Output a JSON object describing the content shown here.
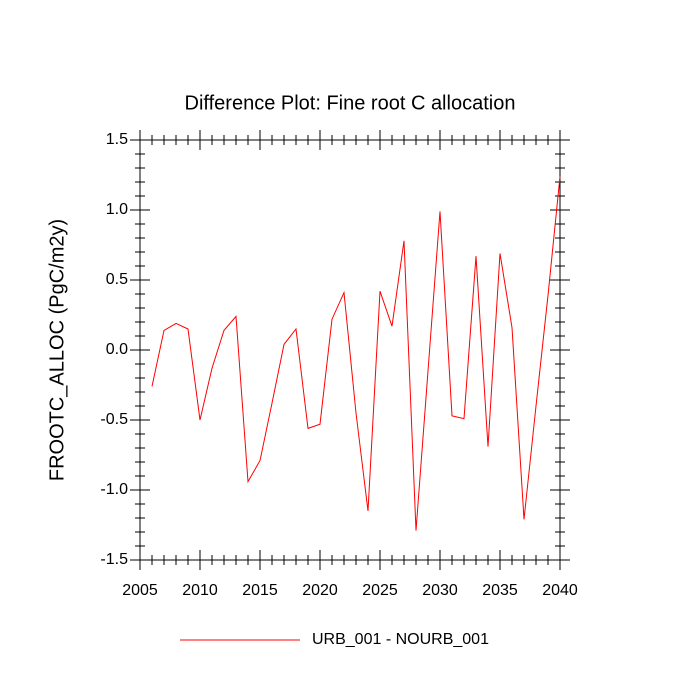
{
  "chart_data": {
    "type": "line",
    "title": "Difference Plot: Fine root C allocation",
    "y_label": "FROOTC_ALLOC  (PgC/m2y)",
    "x": [
      2006,
      2007,
      2008,
      2009,
      2010,
      2011,
      2012,
      2013,
      2014,
      2015,
      2016,
      2017,
      2018,
      2019,
      2020,
      2021,
      2022,
      2023,
      2024,
      2025,
      2026,
      2027,
      2028,
      2029,
      2030,
      2031,
      2032,
      2033,
      2034,
      2035,
      2036,
      2037,
      2038,
      2039,
      2040
    ],
    "series": [
      {
        "name": "URB_001 - NOURB_001",
        "color": "#ff0000",
        "values": [
          -0.26,
          0.14,
          0.19,
          0.15,
          -0.5,
          -0.13,
          0.14,
          0.24,
          -0.94,
          -0.79,
          -0.38,
          0.04,
          0.15,
          -0.56,
          -0.53,
          0.22,
          0.41,
          -0.45,
          -1.15,
          0.42,
          0.17,
          0.78,
          -1.29,
          -0.15,
          0.99,
          -0.47,
          -0.49,
          0.67,
          -0.69,
          0.69,
          0.16,
          -1.21,
          -0.4,
          0.39,
          1.24
        ]
      }
    ],
    "xlim": [
      2005,
      2040
    ],
    "xticks": [
      2005,
      2010,
      2015,
      2020,
      2025,
      2030,
      2035,
      2040
    ],
    "ylim": [
      -1.5,
      1.5
    ],
    "yticks": [
      -1.5,
      {
        "value": -1,
        "label": "-1.0"
      },
      -0.5,
      {
        "value": 0,
        "label": "0.0"
      },
      0.5,
      {
        "value": 1,
        "label": "1.0"
      },
      1.5
    ],
    "legend": "bottom"
  }
}
